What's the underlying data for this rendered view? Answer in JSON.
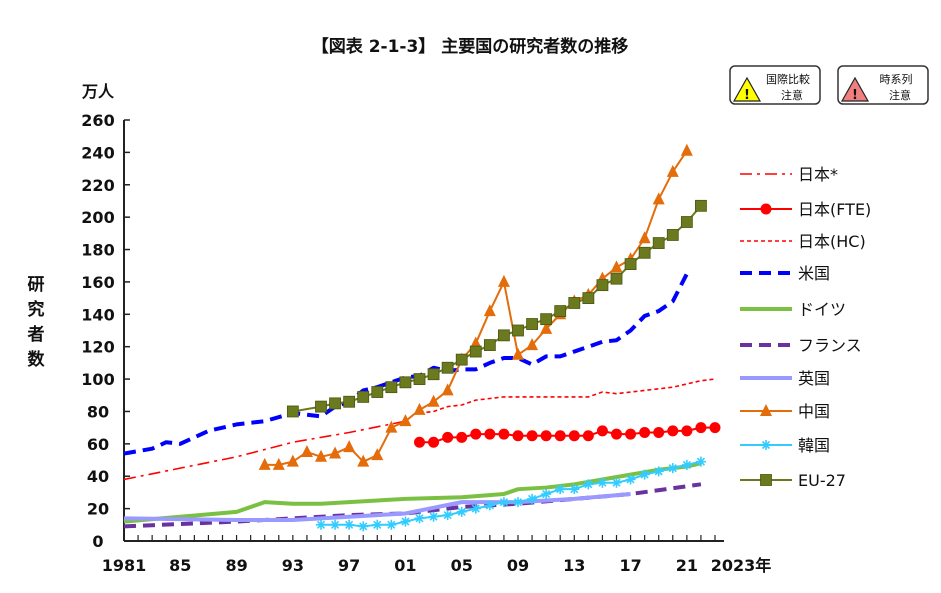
{
  "chart_data": {
    "type": "line",
    "title": "【図表 2-1-3】 主要国の研究者数の推移",
    "unit_label": "万人",
    "ylabel": "研究者数",
    "xlabel_suffix": "年",
    "ylim": [
      0,
      260
    ],
    "yticks": [
      0,
      20,
      40,
      60,
      80,
      100,
      120,
      140,
      160,
      180,
      200,
      220,
      240,
      260
    ],
    "xlim": [
      1981,
      2023
    ],
    "xtick_labels": [
      {
        "year": 1981,
        "label": "1981"
      },
      {
        "year": 1985,
        "label": "85"
      },
      {
        "year": 1989,
        "label": "89"
      },
      {
        "year": 1993,
        "label": "93"
      },
      {
        "year": 1997,
        "label": "97"
      },
      {
        "year": 2001,
        "label": "01"
      },
      {
        "year": 2005,
        "label": "05"
      },
      {
        "year": 2009,
        "label": "09"
      },
      {
        "year": 2013,
        "label": "13"
      },
      {
        "year": 2017,
        "label": "17"
      },
      {
        "year": 2021,
        "label": "21"
      },
      {
        "year": 2023,
        "label": "2023年"
      }
    ],
    "legend_position": "right",
    "badges": [
      {
        "line1": "国際比較",
        "line2": "注意",
        "color": "#ffff00"
      },
      {
        "line1": "時系列",
        "line2": "注意",
        "color": "#f08080"
      }
    ],
    "series": [
      {
        "name": "日本*",
        "color": "#ff0000",
        "style": "dashdot",
        "marker": "none",
        "x": [
          1981,
          1985,
          1989,
          1993,
          1997,
          2001
        ],
        "y": [
          38,
          45,
          52,
          61,
          67,
          74
        ]
      },
      {
        "name": "日本(FTE)",
        "color": "#ff0000",
        "style": "solid",
        "marker": "circle",
        "x": [
          2002,
          2003,
          2004,
          2005,
          2006,
          2007,
          2008,
          2009,
          2010,
          2011,
          2012,
          2013,
          2014,
          2015,
          2016,
          2017,
          2018,
          2019,
          2020,
          2021,
          2022,
          2023
        ],
        "y": [
          61,
          61,
          64,
          64,
          66,
          66,
          66,
          65,
          65,
          65,
          65,
          65,
          65,
          68,
          66,
          66,
          67,
          67,
          68,
          68,
          70,
          70
        ]
      },
      {
        "name": "日本(HC)",
        "color": "#ff0000",
        "style": "dotted",
        "marker": "none",
        "x": [
          2002,
          2003,
          2004,
          2005,
          2006,
          2007,
          2008,
          2009,
          2010,
          2011,
          2012,
          2013,
          2014,
          2015,
          2016,
          2017,
          2018,
          2019,
          2020,
          2021,
          2022,
          2023
        ],
        "y": [
          79,
          80,
          83,
          84,
          87,
          88,
          89,
          89,
          89,
          89,
          89,
          89,
          89,
          92,
          91,
          92,
          93,
          94,
          95,
          97,
          99,
          100
        ]
      },
      {
        "name": "米国",
        "color": "#0000ff",
        "style": "dashed",
        "marker": "none",
        "x": [
          1981,
          1983,
          1984,
          1985,
          1987,
          1989,
          1991,
          1993,
          1995,
          1996,
          1997,
          1998,
          1999,
          2000,
          2001,
          2002,
          2003,
          2004,
          2005,
          2006,
          2007,
          2008,
          2009,
          2010,
          2011,
          2012,
          2013,
          2014,
          2015,
          2016,
          2017,
          2018,
          2019,
          2020,
          2021
        ],
        "y": [
          54,
          57,
          61,
          60,
          68,
          72,
          74,
          79,
          77,
          83,
          86,
          93,
          95,
          98,
          101,
          102,
          107,
          105,
          106,
          106,
          110,
          113,
          113,
          109,
          114,
          114,
          117,
          120,
          123,
          124,
          130,
          139,
          142,
          148,
          165
        ]
      },
      {
        "name": "ドイツ",
        "color": "#7ac143",
        "style": "solid-thick",
        "marker": "none",
        "x": [
          1981,
          1985,
          1989,
          1991,
          1993,
          1995,
          1997,
          1999,
          2001,
          2005,
          2008,
          2009,
          2011,
          2013,
          2015,
          2017,
          2019,
          2021,
          2022
        ],
        "y": [
          12,
          15,
          18,
          24,
          23,
          23,
          24,
          25,
          26,
          27,
          29,
          32,
          33,
          35,
          38,
          41,
          44,
          46,
          48
        ]
      },
      {
        "name": "フランス",
        "color": "#6a329f",
        "style": "dashed-thick",
        "marker": "none",
        "x": [
          1981,
          1989,
          1993,
          1997,
          2001,
          2005,
          2009,
          2013,
          2017,
          2022
        ],
        "y": [
          9,
          12,
          14,
          16,
          17,
          21,
          23,
          26,
          29,
          35
        ]
      },
      {
        "name": "英国",
        "color": "#9999ff",
        "style": "solid-thick",
        "marker": "none",
        "x": [
          1981,
          1989,
          1993,
          1997,
          2001,
          2005,
          2009,
          2013,
          2017
        ],
        "y": [
          14,
          13,
          13,
          15,
          17,
          24,
          24,
          26,
          29
        ]
      },
      {
        "name": "中国",
        "color": "#e46c0a",
        "style": "solid",
        "marker": "triangle",
        "x": [
          1991,
          1992,
          1993,
          1994,
          1995,
          1996,
          1997,
          1998,
          1999,
          2000,
          2001,
          2002,
          2003,
          2004,
          2005,
          2006,
          2007,
          2008,
          2009,
          2010,
          2011,
          2012,
          2013,
          2014,
          2015,
          2016,
          2017,
          2018,
          2019,
          2020,
          2021
        ],
        "y": [
          47,
          47,
          49,
          55,
          52,
          54,
          58,
          49,
          53,
          70,
          74,
          81,
          86,
          93,
          112,
          122,
          142,
          160,
          115,
          121,
          131,
          140,
          148,
          152,
          162,
          169,
          174,
          187,
          211,
          228,
          241
        ]
      },
      {
        "name": "韓国",
        "color": "#33ccff",
        "style": "solid",
        "marker": "star",
        "x": [
          1995,
          1996,
          1997,
          1998,
          1999,
          2000,
          2001,
          2002,
          2003,
          2004,
          2005,
          2006,
          2007,
          2008,
          2009,
          2010,
          2011,
          2012,
          2013,
          2014,
          2015,
          2016,
          2017,
          2018,
          2019,
          2020,
          2021,
          2022
        ],
        "y": [
          10,
          10,
          10,
          9,
          10,
          10,
          12,
          14,
          15,
          16,
          18,
          20,
          22,
          24,
          24,
          26,
          29,
          32,
          32,
          35,
          36,
          36,
          38,
          41,
          43,
          45,
          47,
          49
        ]
      },
      {
        "name": "EU-27",
        "color": "#6b7a1f",
        "style": "solid",
        "marker": "square",
        "x": [
          1993,
          1995,
          1996,
          1997,
          1998,
          1999,
          2000,
          2001,
          2002,
          2003,
          2004,
          2005,
          2006,
          2007,
          2008,
          2009,
          2010,
          2011,
          2012,
          2013,
          2014,
          2015,
          2016,
          2017,
          2018,
          2019,
          2020,
          2021,
          2022
        ],
        "y": [
          80,
          83,
          85,
          86,
          89,
          92,
          95,
          98,
          100,
          103,
          107,
          112,
          117,
          121,
          127,
          130,
          134,
          137,
          142,
          147,
          150,
          158,
          162,
          171,
          178,
          184,
          189,
          197,
          207
        ]
      }
    ]
  }
}
